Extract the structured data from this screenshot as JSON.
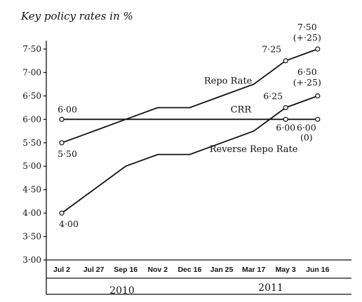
{
  "chart_data": {
    "type": "line",
    "title": "Key policy rates in %",
    "xlabel": "",
    "ylabel": "",
    "categories": [
      "Jul 2",
      "Jul 27",
      "Sep 16",
      "Nov 2",
      "Dec 16",
      "Jan 25",
      "Mar 17",
      "May 3",
      "Jun 16"
    ],
    "year_labels": [
      "2010",
      "2011"
    ],
    "ylim": [
      3.0,
      7.75
    ],
    "y_ticks": [
      "3·00",
      "3·50",
      "4·00",
      "4·50",
      "5·00",
      "5·50",
      "6·00",
      "6·50",
      "7·00",
      "7·50"
    ],
    "y_tick_values": [
      3.0,
      3.5,
      4.0,
      4.5,
      5.0,
      5.5,
      6.0,
      6.5,
      7.0,
      7.5
    ],
    "grid": false,
    "series": [
      {
        "name": "Repo Rate",
        "values": [
          5.5,
          5.75,
          6.0,
          6.25,
          6.25,
          6.5,
          6.75,
          7.25,
          7.5
        ],
        "labels": [
          {
            "index": 0,
            "text": "5·50"
          },
          {
            "index": 7,
            "text": "7·25"
          },
          {
            "index": 8,
            "text": "7·50"
          },
          {
            "index": 8,
            "text": "(+·25)"
          }
        ]
      },
      {
        "name": "CRR",
        "values": [
          6.0,
          6.0,
          6.0,
          6.0,
          6.0,
          6.0,
          6.0,
          6.0,
          6.0
        ],
        "labels": [
          {
            "index": 0,
            "text": "6·00"
          },
          {
            "index": 7,
            "text": "6·00"
          },
          {
            "index": 8,
            "text": "6·00"
          },
          {
            "index": 8,
            "text": "(0)"
          }
        ]
      },
      {
        "name": "Reverse Repo Rate",
        "values": [
          4.0,
          4.5,
          5.0,
          5.25,
          5.25,
          5.5,
          5.75,
          6.25,
          6.5
        ],
        "labels": [
          {
            "index": 0,
            "text": "4·00"
          },
          {
            "index": 7,
            "text": "6·25"
          },
          {
            "index": 8,
            "text": "6·50"
          },
          {
            "index": 8,
            "text": "(+·25)"
          }
        ]
      }
    ]
  }
}
